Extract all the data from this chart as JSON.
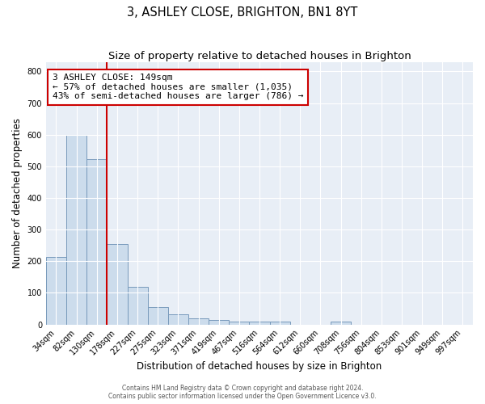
{
  "title": "3, ASHLEY CLOSE, BRIGHTON, BN1 8YT",
  "subtitle": "Size of property relative to detached houses in Brighton",
  "xlabel": "Distribution of detached houses by size in Brighton",
  "ylabel": "Number of detached properties",
  "bar_labels": [
    "34sqm",
    "82sqm",
    "130sqm",
    "178sqm",
    "227sqm",
    "275sqm",
    "323sqm",
    "371sqm",
    "419sqm",
    "467sqm",
    "516sqm",
    "564sqm",
    "612sqm",
    "660sqm",
    "708sqm",
    "756sqm",
    "804sqm",
    "853sqm",
    "901sqm",
    "949sqm",
    "997sqm"
  ],
  "bar_values": [
    213,
    600,
    523,
    255,
    118,
    55,
    32,
    20,
    14,
    9,
    9,
    9,
    0,
    0,
    8,
    0,
    0,
    0,
    0,
    0,
    0
  ],
  "bar_color": "#ccdcec",
  "bar_edge_color": "#7799bb",
  "reference_line_label": "3 ASHLEY CLOSE: 149sqm",
  "annotation_line1": "← 57% of detached houses are smaller (1,035)",
  "annotation_line2": "43% of semi-detached houses are larger (786) →",
  "annotation_box_color": "#ffffff",
  "annotation_box_edge_color": "#cc0000",
  "reference_line_color": "#cc0000",
  "reference_line_index": 2,
  "ylim": [
    0,
    830
  ],
  "yticks": [
    0,
    100,
    200,
    300,
    400,
    500,
    600,
    700,
    800
  ],
  "background_color": "#e8eef6",
  "footer_line1": "Contains HM Land Registry data © Crown copyright and database right 2024.",
  "footer_line2": "Contains public sector information licensed under the Open Government Licence v3.0.",
  "title_fontsize": 10.5,
  "subtitle_fontsize": 9.5,
  "tick_fontsize": 7,
  "ylabel_fontsize": 8.5,
  "xlabel_fontsize": 8.5,
  "annotation_fontsize": 8
}
